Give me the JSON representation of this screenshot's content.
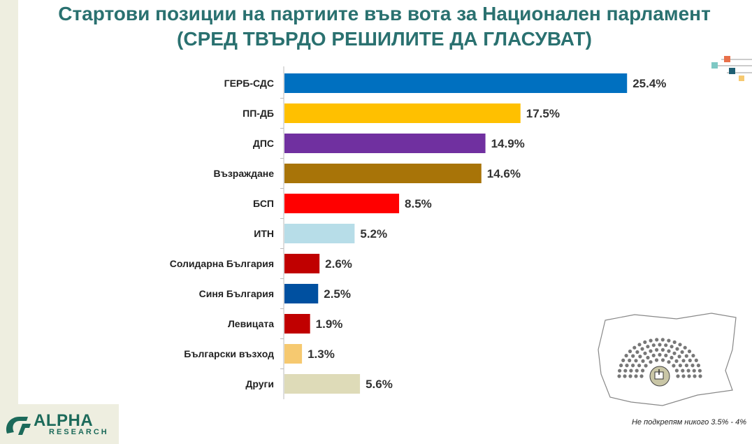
{
  "title": {
    "line1": "Стартови позиции на партиите във вота за Национален парламент",
    "line2": "(СРЕД ТВЪРДО РЕШИЛИТЕ ДА ГЛАСУВАТ)"
  },
  "chart_data": {
    "type": "bar",
    "orientation": "horizontal",
    "title": "Стартови позиции на партиите във вота за Национален парламент (СРЕД ТВЪРДО РЕШИЛИТЕ ДА ГЛАСУВАТ)",
    "categories": [
      "ГЕРБ-СДС",
      "ПП-ДБ",
      "ДПС",
      "Възраждане",
      "БСП",
      "ИТН",
      "Солидарна България",
      "Синя България",
      "Левицата",
      "Български възход",
      "Други"
    ],
    "values": [
      25.4,
      17.5,
      14.9,
      14.6,
      8.5,
      5.2,
      2.6,
      2.5,
      1.9,
      1.3,
      5.6
    ],
    "value_labels": [
      "25.4%",
      "17.5%",
      "14.9%",
      "14.6%",
      "8.5%",
      "5.2%",
      "2.6%",
      "2.5%",
      "1.9%",
      "1.3%",
      "5.6%"
    ],
    "colors": [
      "#0070c0",
      "#ffc000",
      "#7030a0",
      "#a87408",
      "#ff0000",
      "#b7dde8",
      "#c00000",
      "#0050a0",
      "#c00000",
      "#f6c970",
      "#dedbb8"
    ],
    "unit": "%",
    "grid": false,
    "legend": "none"
  },
  "footnote": "Не подкрепям никого 3.5% - 4%",
  "logo": {
    "word": "ALPHA",
    "sub": "RESEARCH"
  }
}
